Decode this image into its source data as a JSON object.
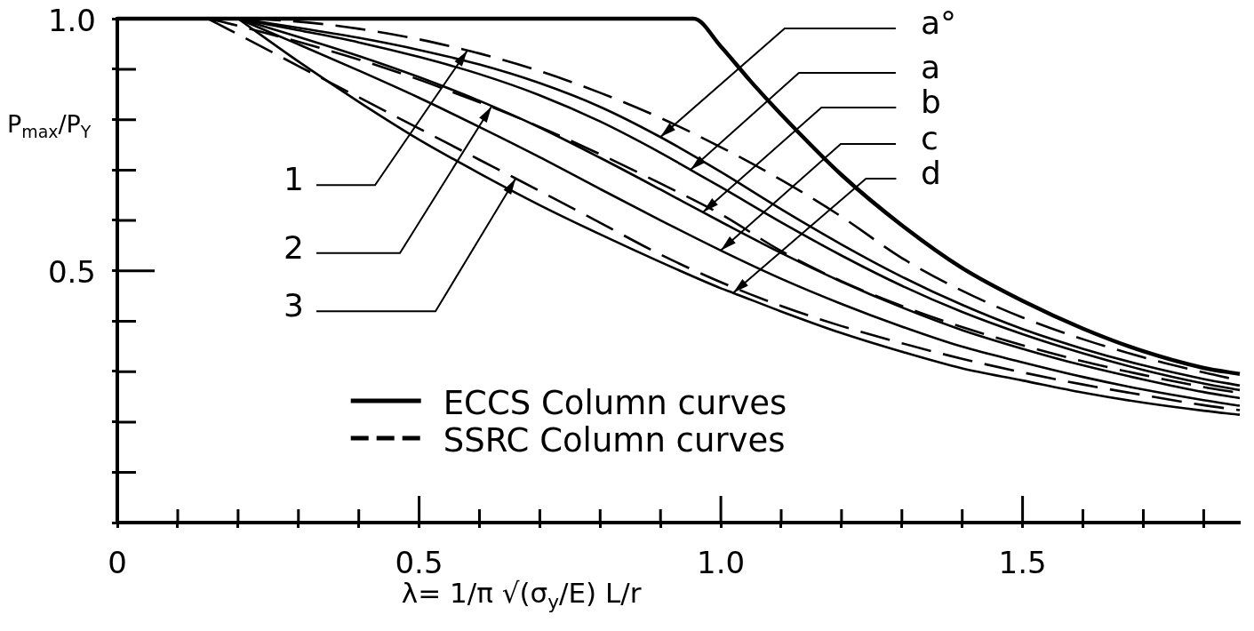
{
  "chart_data": {
    "type": "line",
    "xlabel": "λ= 1/π √(σ$_{y}$/E) L/r",
    "ylabel": "P$_{max}$/P$_{Y}$",
    "xlim": [
      0,
      1.86
    ],
    "xticks": [
      {
        "value": 0,
        "label": "0"
      },
      {
        "value": 0.1,
        "label": null
      },
      {
        "value": 0.2,
        "label": null
      },
      {
        "value": 0.3,
        "label": null
      },
      {
        "value": 0.4,
        "label": null
      },
      0.5,
      {
        "value": 0.6,
        "label": null
      },
      {
        "value": 0.7,
        "label": null
      },
      {
        "value": 0.8,
        "label": null
      },
      {
        "value": 0.9,
        "label": null
      },
      {
        "value": 1,
        "label": "1.0"
      },
      {
        "value": 1.1,
        "label": null
      },
      {
        "value": 1.2,
        "label": null
      },
      {
        "value": 1.3,
        "label": null
      },
      {
        "value": 1.4,
        "label": null
      },
      1.5,
      {
        "value": 1.6,
        "label": null
      },
      {
        "value": 1.7,
        "label": null
      },
      {
        "value": 1.8,
        "label": null
      }
    ],
    "ylim": [
      0,
      1
    ],
    "yticks": [
      {
        "value": 0,
        "label": null
      },
      {
        "value": 0.1,
        "label": null
      },
      {
        "value": 0.2,
        "label": null
      },
      {
        "value": 0.3,
        "label": null
      },
      {
        "value": 0.4,
        "label": null
      },
      0.5,
      {
        "value": 0.6,
        "label": null
      },
      {
        "value": 0.7,
        "label": null
      },
      {
        "value": 0.8,
        "label": null
      },
      {
        "value": 0.9,
        "label": null
      },
      {
        "value": 1,
        "label": "1.0"
      }
    ],
    "grid": false,
    "legend": "bottom",
    "marker": "none",
    "series": [
      {
        "color": "#000000",
        "line_style": "solid",
        "x": [
          0,
          0.955,
          1.0,
          1.05,
          1.1,
          1.2,
          1.3,
          1.4,
          1.5,
          1.6,
          1.7,
          1.8,
          1.86
        ],
        "values": [
          1,
          1,
          0.945,
          0.875,
          0.81,
          0.69,
          0.59,
          0.505,
          0.44,
          0.385,
          0.34,
          0.307,
          0.295
        ]
      },
      {
        "name": "ECCS Column curves",
        "color": "#000000",
        "line_style": "solid",
        "x": [
          0.2,
          0.3,
          0.4,
          0.5,
          0.6,
          0.7,
          0.8,
          0.9,
          1.0,
          1.1,
          1.2,
          1.3,
          1.4,
          1.5,
          1.6,
          1.7,
          1.8,
          1.86
        ],
        "values": [
          1,
          0.982,
          0.962,
          0.938,
          0.909,
          0.872,
          0.825,
          0.765,
          0.696,
          0.622,
          0.552,
          0.488,
          0.432,
          0.384,
          0.345,
          0.312,
          0.285,
          0.272
        ]
      },
      {
        "color": "#000000",
        "line_style": "solid",
        "x": [
          0.2,
          0.3,
          0.4,
          0.5,
          0.6,
          0.7,
          0.8,
          0.9,
          0.95,
          1.0,
          1.1,
          1.2,
          1.3,
          1.4,
          1.5,
          1.6,
          1.7,
          1.8,
          1.86
        ],
        "values": [
          1,
          0.977,
          0.953,
          0.924,
          0.89,
          0.848,
          0.796,
          0.734,
          0.7,
          0.666,
          0.596,
          0.53,
          0.47,
          0.418,
          0.374,
          0.336,
          0.303,
          0.276,
          0.263
        ]
      },
      {
        "color": "#000000",
        "line_style": "solid",
        "x": [
          0.2,
          0.3,
          0.4,
          0.5,
          0.6,
          0.7,
          0.8,
          0.9,
          0.97,
          1.0,
          1.1,
          1.2,
          1.3,
          1.4,
          1.5,
          1.6,
          1.7,
          1.8,
          1.86
        ],
        "values": [
          1,
          0.964,
          0.926,
          0.884,
          0.837,
          0.784,
          0.724,
          0.661,
          0.616,
          0.597,
          0.535,
          0.478,
          0.427,
          0.382,
          0.345,
          0.312,
          0.284,
          0.259,
          0.247
        ]
      },
      {
        "color": "#000000",
        "line_style": "solid",
        "x": [
          0.2,
          0.3,
          0.4,
          0.5,
          0.6,
          0.7,
          0.8,
          0.9,
          1.0,
          1.1,
          1.2,
          1.3,
          1.4,
          1.5,
          1.6,
          1.7,
          1.8,
          1.86
        ],
        "values": [
          1,
          0.949,
          0.897,
          0.843,
          0.785,
          0.725,
          0.662,
          0.6,
          0.54,
          0.484,
          0.434,
          0.389,
          0.349,
          0.318,
          0.289,
          0.264,
          0.243,
          0.232
        ]
      },
      {
        "color": "#000000",
        "line_style": "solid",
        "x": [
          0.2,
          0.3,
          0.4,
          0.5,
          0.6,
          0.7,
          0.8,
          0.9,
          1.0,
          1.02,
          1.1,
          1.2,
          1.3,
          1.4,
          1.5,
          1.6,
          1.7,
          1.8,
          1.86
        ],
        "values": [
          1,
          0.915,
          0.835,
          0.76,
          0.693,
          0.63,
          0.572,
          0.517,
          0.465,
          0.456,
          0.419,
          0.376,
          0.339,
          0.306,
          0.282,
          0.258,
          0.238,
          0.222,
          0.214
        ]
      },
      {
        "name": "SSRC Column curves",
        "color": "#000000",
        "line_style": "dashed",
        "x": [
          0.15,
          0.2,
          0.3,
          0.4,
          0.5,
          0.58,
          0.6,
          0.7,
          0.8,
          0.9,
          1.0,
          1.1,
          1.2,
          1.3,
          1.4,
          1.5,
          1.6,
          1.7,
          1.8,
          1.86
        ],
        "values": [
          1,
          1,
          0.994,
          0.98,
          0.959,
          0.937,
          0.931,
          0.896,
          0.853,
          0.803,
          0.745,
          0.68,
          0.607,
          0.525,
          0.46,
          0.407,
          0.364,
          0.328,
          0.298,
          0.282
        ]
      },
      {
        "color": "#000000",
        "line_style": "dashed",
        "x": [
          0.15,
          0.2,
          0.3,
          0.4,
          0.5,
          0.6,
          0.62,
          0.7,
          0.8,
          0.9,
          1.0,
          1.1,
          1.2,
          1.3,
          1.4,
          1.5,
          1.6,
          1.7,
          1.8,
          1.86
        ],
        "values": [
          1,
          0.986,
          0.954,
          0.919,
          0.879,
          0.834,
          0.825,
          0.785,
          0.731,
          0.673,
          0.612,
          0.539,
          0.479,
          0.43,
          0.388,
          0.352,
          0.32,
          0.293,
          0.269,
          0.257
        ]
      },
      {
        "color": "#000000",
        "line_style": "dashed",
        "x": [
          0.15,
          0.2,
          0.3,
          0.4,
          0.5,
          0.6,
          0.66,
          0.7,
          0.8,
          0.9,
          1.0,
          1.1,
          1.2,
          1.3,
          1.4,
          1.5,
          1.6,
          1.7,
          1.8,
          1.86
        ],
        "values": [
          1,
          0.969,
          0.906,
          0.844,
          0.782,
          0.72,
          0.683,
          0.658,
          0.595,
          0.532,
          0.477,
          0.43,
          0.39,
          0.356,
          0.325,
          0.298,
          0.274,
          0.253,
          0.233,
          0.223
        ]
      }
    ],
    "annotations": [
      {
        "text": "a°",
        "x": 0.9,
        "y": 0.765
      },
      {
        "text": "a",
        "x": 0.95,
        "y": 0.7
      },
      {
        "text": "b",
        "x": 0.97,
        "y": 0.616
      },
      {
        "text": "c",
        "x": 1.0,
        "y": 0.54
      },
      {
        "text": "d",
        "x": 1.02,
        "y": 0.456
      },
      {
        "text": "1",
        "x": 0.58,
        "y": 0.937
      },
      {
        "text": "2",
        "x": 0.62,
        "y": 0.825
      },
      {
        "text": "3",
        "x": 0.66,
        "y": 0.683
      }
    ]
  }
}
